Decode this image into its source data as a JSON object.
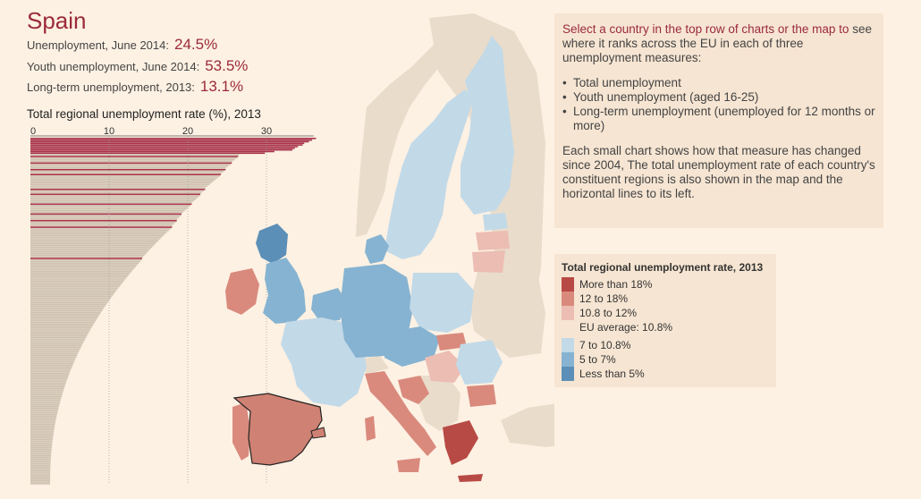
{
  "country": "Spain",
  "stats": [
    {
      "label": "Unemployment, June 2014:",
      "value": "24.5%"
    },
    {
      "label": "Youth unemployment, June 2014:",
      "value": "53.5%"
    },
    {
      "label": "Long-term unemployment, 2013:",
      "value": "13.1%"
    }
  ],
  "chart_data": {
    "type": "bar",
    "orientation": "horizontal",
    "title": "Total regional unemployment rate (%), 2013",
    "xlim": [
      0,
      36
    ],
    "xticks": [
      0,
      10,
      20,
      30
    ],
    "tick_labels": [
      "0",
      "10",
      "20",
      "30"
    ],
    "highlight_color": "#a8324a",
    "base_color": "#cec1b0",
    "highlight_values": [
      36.3,
      35.8,
      35.4,
      34.8,
      34.6,
      34.0,
      33.6,
      33.3,
      31.0,
      29.8,
      26.4,
      25.6,
      24.8,
      24.2,
      22.2,
      21.6,
      20.5,
      19.2,
      18.6,
      18.0,
      14.2
    ],
    "other_values_range": [
      2.5,
      26.5
    ]
  },
  "info_panel": {
    "lead": "Select a country in the top row of charts or the map to",
    "rest": "see where it ranks across the EU in each of three unemployment measures:",
    "bullets": [
      "Total unemployment",
      "Youth unemployment (aged 16-25)",
      "Long-term unemployment (unemployed for 12 months or more)"
    ],
    "footer": "Each small chart shows how that measure has changed since 2004, The total unemployment rate of each country's constituent regions is also shown in the map and the horizontal lines to its left."
  },
  "legend": {
    "title": "Total regional unemployment rate, 2013",
    "high_items": [
      {
        "label": "More than 18%",
        "color": "#b84a45"
      },
      {
        "label": "12 to 18%",
        "color": "#d98a7d"
      },
      {
        "label": "10.8 to 12%",
        "color": "#ecbdb2"
      }
    ],
    "average": "EU average: 10.8%",
    "low_items": [
      {
        "label": "7 to 10.8%",
        "color": "#c2d9e8"
      },
      {
        "label": "5 to 7%",
        "color": "#86b3d1"
      },
      {
        "label": "Less than 5%",
        "color": "#5b8fb7"
      }
    ]
  },
  "map": {
    "colors": {
      "non_eu": "#e9dccb",
      "selected": "#cf8173",
      "lt5": "#5b8fb7",
      "5to7": "#86b3d1",
      "7to10": "#c2d9e8",
      "10to12": "#ecbdb2",
      "12to18": "#d98a7d",
      "gt18": "#b84a45"
    }
  }
}
